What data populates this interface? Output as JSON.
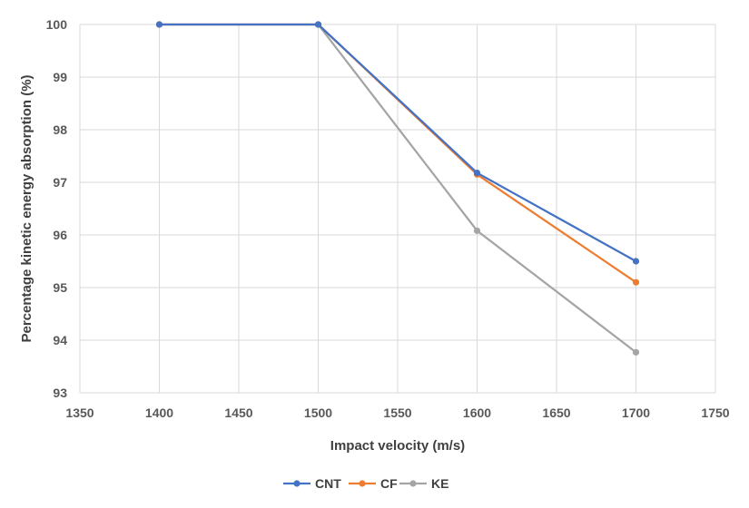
{
  "chart_data": {
    "type": "line",
    "title": "",
    "xlabel": "Impact velocity (m/s)",
    "ylabel": "Percentage kinetic energy absorption (%)",
    "xlim": [
      1350,
      1750
    ],
    "ylim": [
      93,
      100
    ],
    "xticks": [
      1350,
      1400,
      1450,
      1500,
      1550,
      1600,
      1650,
      1700,
      1750
    ],
    "yticks": [
      93,
      94,
      95,
      96,
      97,
      98,
      99,
      100
    ],
    "x": [
      1400,
      1500,
      1600,
      1700
    ],
    "grid": true,
    "legend_position": "bottom",
    "series": [
      {
        "name": "CNT",
        "color": "#4472c4",
        "values": [
          100,
          100,
          97.18,
          95.5
        ]
      },
      {
        "name": "CF",
        "color": "#ed7d31",
        "values": [
          100,
          100,
          97.15,
          95.1
        ]
      },
      {
        "name": "KE",
        "color": "#a5a5a5",
        "values": [
          100,
          100,
          96.08,
          93.77
        ]
      }
    ]
  }
}
